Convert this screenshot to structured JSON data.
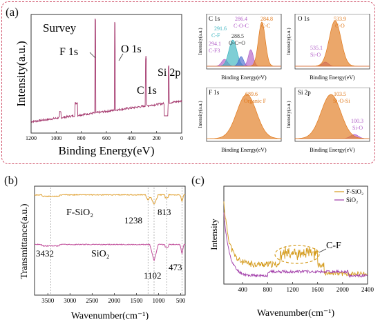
{
  "panel_labels": {
    "a": "(a)",
    "b": "(b)",
    "c": "(c)"
  },
  "colors": {
    "frame": "#d0546b",
    "survey_line": "#a2336a",
    "orange": "#e0781a",
    "purple": "#b260c8",
    "teal": "#39b3bf",
    "pink": "#e9a1b3",
    "ftir_top": "#e0a030",
    "ftir_bottom": "#c04d9a",
    "raman_f": "#d49a1a",
    "raman_s": "#a03aa8"
  },
  "chart_data": [
    {
      "type": "line",
      "name_key": "survey",
      "title": "Survey",
      "xlabel": "Binding Energy(eV)",
      "ylabel": "Intensity(a.u.)",
      "xlim": [
        1200,
        0
      ],
      "x_ticks": [
        "1200",
        "1000",
        "800",
        "600",
        "400",
        "200",
        "0"
      ],
      "annotations": [
        "F 1s",
        "O 1s",
        "C 1s",
        "Si 2p"
      ],
      "peaks": [
        {
          "x": 689,
          "label": "F 1s"
        },
        {
          "x": 533,
          "label": "O 1s"
        },
        {
          "x": 285,
          "label": "C 1s"
        },
        {
          "x": 103,
          "label": "Si 2p"
        }
      ]
    },
    {
      "type": "area",
      "title": "C 1s",
      "xlabel": "Binding Energy(eV)",
      "ylabel": "Intensity(a.u.)",
      "peaks": [
        {
          "x": 294.1,
          "label": "C-F3",
          "value_text": "294.1"
        },
        {
          "x": 291.6,
          "label": "C-F",
          "value_text": "291.6"
        },
        {
          "x": 288.5,
          "label": "O-C=O",
          "value_text": "288.5"
        },
        {
          "x": 286.4,
          "label": "C-O-C",
          "value_text": "286.4"
        },
        {
          "x": 284.8,
          "label": "C-C",
          "value_text": "284.8"
        }
      ]
    },
    {
      "type": "area",
      "title": "O 1s",
      "xlabel": "Binding Energy(eV)",
      "ylabel": "Intensity(a.u.)",
      "peaks": [
        {
          "x": 535.1,
          "label": "Si-O",
          "value_text": "535.1"
        },
        {
          "x": 533.9,
          "label": "C-O",
          "value_text": "533.9"
        }
      ]
    },
    {
      "type": "area",
      "title": "F 1s",
      "xlabel": "Binding Energy(eV)",
      "ylabel": "Intensity(a.u.)",
      "peaks": [
        {
          "x": 689.6,
          "label": "Organic F",
          "value_text": "689.6"
        }
      ]
    },
    {
      "type": "area",
      "title": "Si 2p",
      "xlabel": "Binding Energy(eV)",
      "ylabel": "Intensity(a.u.)",
      "peaks": [
        {
          "x": 103.5,
          "label": "Si-O-Si",
          "value_text": "103.5"
        },
        {
          "x": 100.3,
          "label": "Si-O",
          "value_text": "100.3"
        }
      ]
    },
    {
      "type": "line",
      "name_key": "ftir",
      "xlabel": "Wavenumber(cm⁻¹)",
      "ylabel": "Transmittance(a.u.)",
      "xlim": [
        3800,
        400
      ],
      "x_ticks": [
        "3500",
        "3000",
        "2500",
        "2000",
        "1500",
        "1000",
        "500"
      ],
      "series": [
        {
          "name": "F-SiO₂"
        },
        {
          "name": "SiO₂"
        }
      ],
      "annotations": [
        "1238",
        "813",
        "3432",
        "1102",
        "473"
      ],
      "marker_lines": [
        3432,
        1238,
        1102,
        813,
        473
      ]
    },
    {
      "type": "line",
      "name_key": "raman",
      "xlabel": "Wavenumber(cm⁻¹)",
      "ylabel": "Intensity",
      "xlim": [
        100,
        2400
      ],
      "x_ticks": [
        "400",
        "800",
        "1200",
        "1600",
        "2000",
        "2400"
      ],
      "series": [
        {
          "name": "F-SiO₂"
        },
        {
          "name": "SiO₂"
        }
      ],
      "annotations": [
        "C-F"
      ]
    }
  ]
}
